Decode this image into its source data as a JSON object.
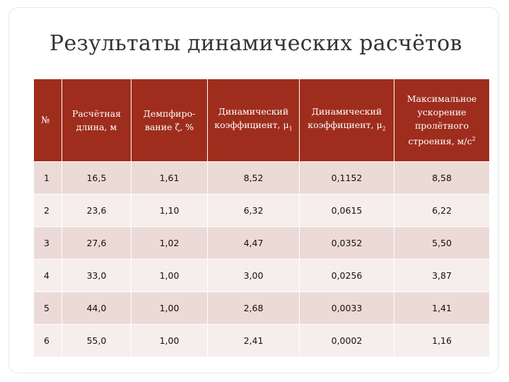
{
  "slide": {
    "title": "Результаты динамических расчётов"
  },
  "table": {
    "header": {
      "num": "№",
      "length": "Расчётная длина, м",
      "damping": "Демпфиро-вание ζ, %",
      "dyn1_text": "Динамический коэффициент, μ",
      "dyn1_sub": "1",
      "dyn2_text": "Динамический коэффициент, μ",
      "dyn2_sub": "2",
      "accel_text": "Максимальное ускорение пролётного строения, м/с",
      "accel_sup": "2"
    },
    "rows": [
      {
        "num": "1",
        "length": "16,5",
        "damping": "1,61",
        "mu1": "8,52",
        "mu2": "0,1152",
        "accel": "8,58"
      },
      {
        "num": "2",
        "length": "23,6",
        "damping": "1,10",
        "mu1": "6,32",
        "mu2": "0,0615",
        "accel": "6,22"
      },
      {
        "num": "3",
        "length": "27,6",
        "damping": "1,02",
        "mu1": "4,47",
        "mu2": "0,0352",
        "accel": "5,50"
      },
      {
        "num": "4",
        "length": "33,0",
        "damping": "1,00",
        "mu1": "3,00",
        "mu2": "0,0256",
        "accel": "3,87"
      },
      {
        "num": "5",
        "length": "44,0",
        "damping": "1,00",
        "mu1": "2,68",
        "mu2": "0,0033",
        "accel": "1,41"
      },
      {
        "num": "6",
        "length": "55,0",
        "damping": "1,00",
        "mu1": "2,41",
        "mu2": "0,0002",
        "accel": "1,16"
      }
    ]
  },
  "colors": {
    "header_bg": "#9e2d1d",
    "row_odd": "#ecdad6",
    "row_even": "#f6eeec",
    "title_text": "#333333"
  }
}
